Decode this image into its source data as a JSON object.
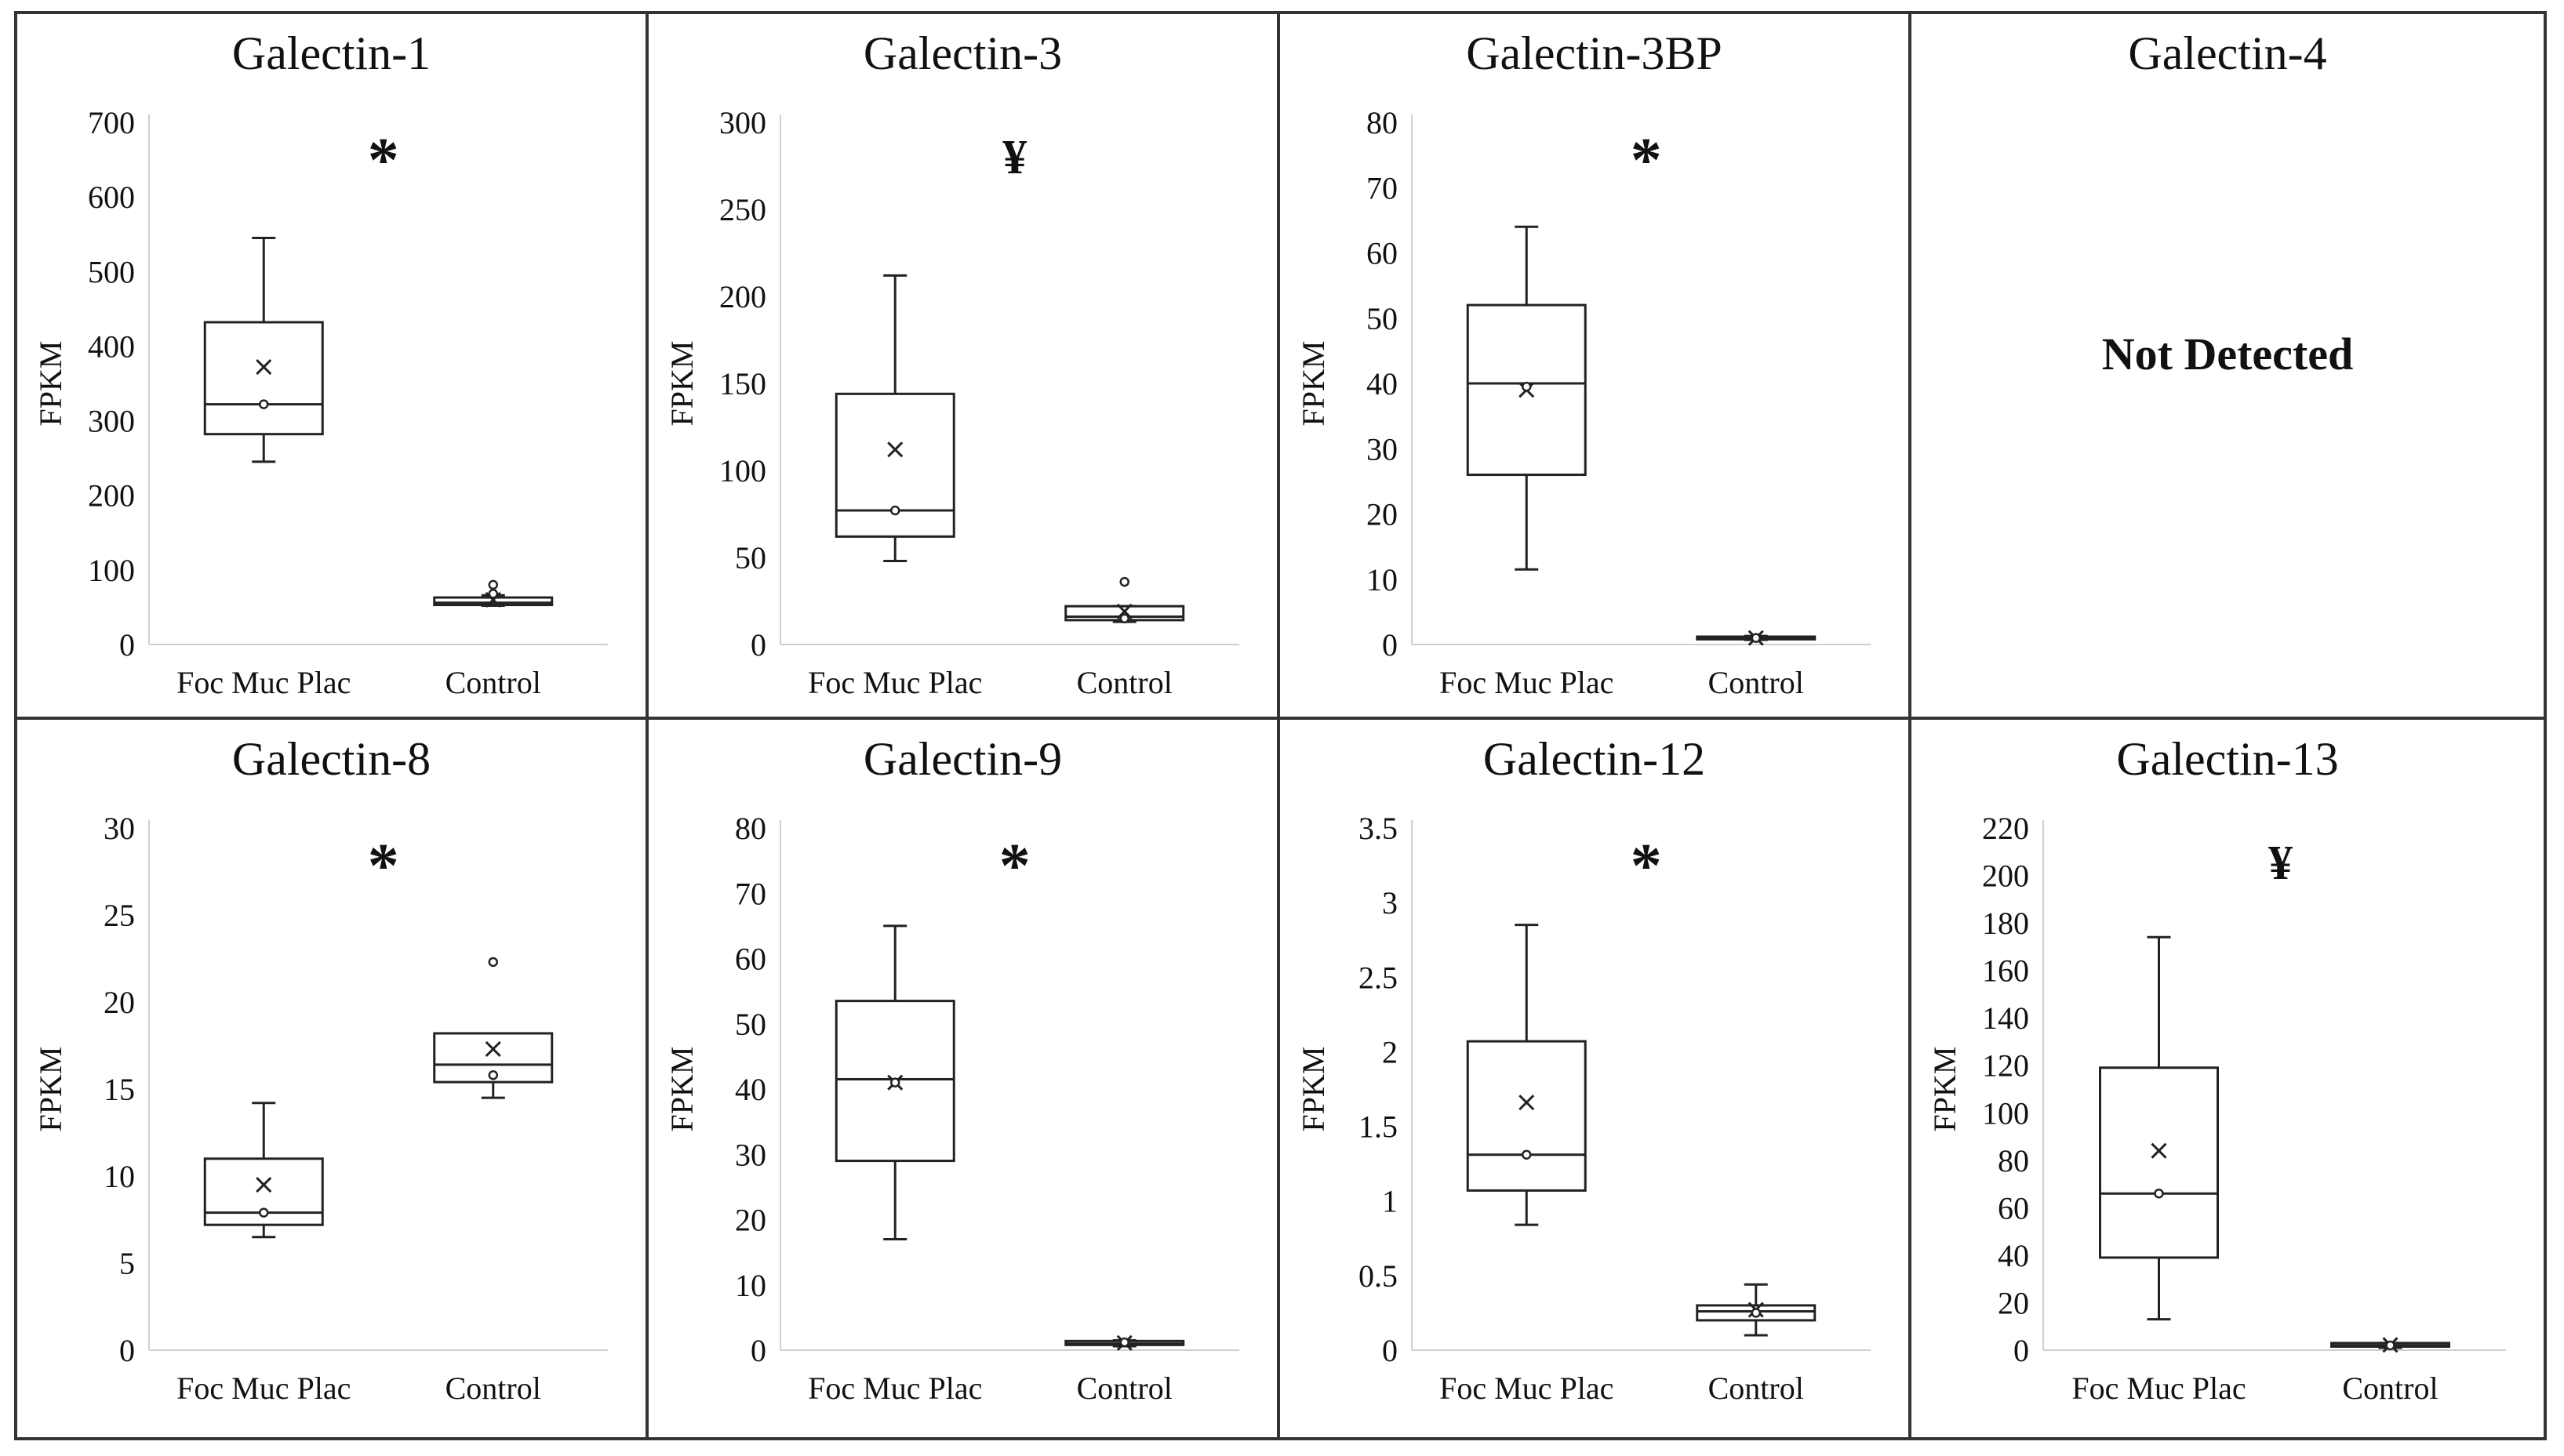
{
  "figure": {
    "ylabel": "FPKM",
    "categories": [
      "Foc Muc Plac",
      "Control"
    ],
    "not_detected_text": "Not Detected"
  },
  "chart_data": [
    {
      "type": "boxplot",
      "title": "Galectin-1",
      "ylabel": "FPKM",
      "ylim": [
        0,
        700
      ],
      "yticks": [
        0,
        100,
        200,
        300,
        400,
        500,
        600,
        700
      ],
      "categories": [
        "Foc Muc Plac",
        "Control"
      ],
      "significance": "*",
      "boxes": [
        {
          "category": "Foc Muc Plac",
          "min": 245,
          "q1": 282,
          "median": 322,
          "q3": 432,
          "max": 545,
          "mean": 372,
          "outliers": [],
          "points": [
            322
          ]
        },
        {
          "category": "Control",
          "min": 52,
          "q1": 53,
          "median": 56,
          "q3": 63,
          "max": 66,
          "mean": 60,
          "outliers": [
            80
          ],
          "points": [
            68
          ]
        }
      ]
    },
    {
      "type": "boxplot",
      "title": "Galectin-3",
      "ylabel": "FPKM",
      "ylim": [
        0,
        300
      ],
      "yticks": [
        0,
        50,
        100,
        150,
        200,
        250,
        300
      ],
      "categories": [
        "Foc Muc Plac",
        "Control"
      ],
      "significance": "¥",
      "boxes": [
        {
          "category": "Foc Muc Plac",
          "min": 48,
          "q1": 62,
          "median": 77,
          "q3": 144,
          "max": 212,
          "mean": 112,
          "outliers": [],
          "points": [
            77
          ]
        },
        {
          "category": "Control",
          "min": 13,
          "q1": 14,
          "median": 16,
          "q3": 22,
          "max": 22,
          "mean": 19,
          "outliers": [
            36
          ],
          "points": [
            15
          ]
        }
      ]
    },
    {
      "type": "boxplot",
      "title": "Galectin-3BP",
      "ylabel": "FPKM",
      "ylim": [
        0,
        80
      ],
      "yticks": [
        0,
        10,
        20,
        30,
        40,
        50,
        60,
        70,
        80
      ],
      "categories": [
        "Foc Muc Plac",
        "Control"
      ],
      "significance": "*",
      "boxes": [
        {
          "category": "Foc Muc Plac",
          "min": 11.5,
          "q1": 26,
          "median": 40,
          "q3": 52,
          "max": 64,
          "mean": 39,
          "outliers": [],
          "points": [
            39.5
          ]
        },
        {
          "category": "Control",
          "min": 0.7,
          "q1": 0.8,
          "median": 1,
          "q3": 1.2,
          "max": 1.3,
          "mean": 1,
          "outliers": [],
          "points": [
            1
          ]
        }
      ]
    },
    {
      "type": "not_detected",
      "title": "Galectin-4",
      "message": "Not Detected"
    },
    {
      "type": "boxplot",
      "title": "Galectin-8",
      "ylabel": "FPKM",
      "ylim": [
        0,
        30
      ],
      "yticks": [
        0,
        5,
        10,
        15,
        20,
        25,
        30
      ],
      "categories": [
        "Foc Muc Plac",
        "Control"
      ],
      "significance": "*",
      "boxes": [
        {
          "category": "Foc Muc Plac",
          "min": 6.5,
          "q1": 7.2,
          "median": 7.9,
          "q3": 11,
          "max": 14.2,
          "mean": 9.5,
          "outliers": [],
          "points": [
            7.9
          ]
        },
        {
          "category": "Control",
          "min": 14.5,
          "q1": 15.4,
          "median": 16.4,
          "q3": 18.2,
          "max": 18.2,
          "mean": 17.3,
          "outliers": [
            22.3
          ],
          "points": [
            15.8
          ]
        }
      ]
    },
    {
      "type": "boxplot",
      "title": "Galectin-9",
      "ylabel": "FPKM",
      "ylim": [
        0,
        80
      ],
      "yticks": [
        0,
        10,
        20,
        30,
        40,
        50,
        60,
        70,
        80
      ],
      "categories": [
        "Foc Muc Plac",
        "Control"
      ],
      "significance": "*",
      "boxes": [
        {
          "category": "Foc Muc Plac",
          "min": 17,
          "q1": 29,
          "median": 41.5,
          "q3": 53.5,
          "max": 65,
          "mean": 41,
          "outliers": [],
          "points": [
            41
          ]
        },
        {
          "category": "Control",
          "min": 0.6,
          "q1": 0.8,
          "median": 1,
          "q3": 1.4,
          "max": 1.5,
          "mean": 1.1,
          "outliers": [],
          "points": [
            1.2
          ]
        }
      ]
    },
    {
      "type": "boxplot",
      "title": "Galectin-12",
      "ylabel": "FPKM",
      "ylim": [
        0,
        3.5
      ],
      "yticks": [
        0,
        0.5,
        1,
        1.5,
        2,
        2.5,
        3,
        3.5
      ],
      "categories": [
        "Foc Muc Plac",
        "Control"
      ],
      "significance": "*",
      "boxes": [
        {
          "category": "Foc Muc Plac",
          "min": 0.84,
          "q1": 1.07,
          "median": 1.31,
          "q3": 2.07,
          "max": 2.85,
          "mean": 1.66,
          "outliers": [],
          "points": [
            1.31
          ]
        },
        {
          "category": "Control",
          "min": 0.1,
          "q1": 0.2,
          "median": 0.26,
          "q3": 0.3,
          "max": 0.44,
          "mean": 0.27,
          "outliers": [],
          "points": [
            0.25
          ]
        }
      ]
    },
    {
      "type": "boxplot",
      "title": "Galectin-13",
      "ylabel": "FPKM",
      "ylim": [
        0,
        220
      ],
      "yticks": [
        0,
        20,
        40,
        60,
        80,
        100,
        120,
        140,
        160,
        180,
        200,
        220
      ],
      "categories": [
        "Foc Muc Plac",
        "Control"
      ],
      "significance": "¥",
      "boxes": [
        {
          "category": "Foc Muc Plac",
          "min": 13,
          "q1": 39,
          "median": 66,
          "q3": 119,
          "max": 174,
          "mean": 84,
          "outliers": [],
          "points": [
            66
          ]
        },
        {
          "category": "Control",
          "min": 1,
          "q1": 1.5,
          "median": 2,
          "q3": 3,
          "max": 3,
          "mean": 2.2,
          "outliers": [],
          "points": [
            2
          ]
        }
      ]
    }
  ]
}
